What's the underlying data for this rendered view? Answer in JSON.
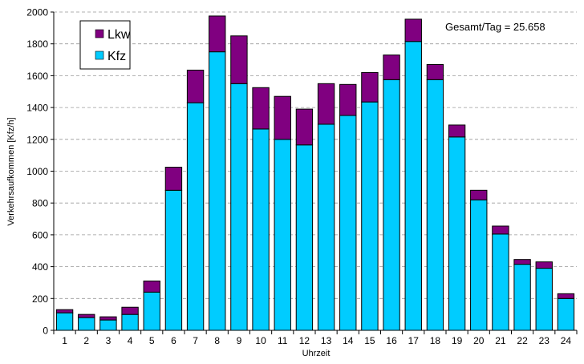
{
  "chart_data": {
    "type": "bar",
    "stacked": true,
    "categories": [
      "1",
      "2",
      "3",
      "4",
      "5",
      "6",
      "7",
      "8",
      "9",
      "10",
      "11",
      "12",
      "13",
      "14",
      "15",
      "16",
      "17",
      "18",
      "19",
      "20",
      "21",
      "22",
      "23",
      "24"
    ],
    "series": [
      {
        "name": "Kfz",
        "color": "#00CCFF",
        "values": [
          110,
          80,
          65,
          100,
          240,
          880,
          1430,
          1750,
          1550,
          1265,
          1200,
          1165,
          1295,
          1350,
          1435,
          1575,
          1815,
          1575,
          1215,
          820,
          605,
          415,
          390,
          200
        ]
      },
      {
        "name": "Lkw",
        "color": "#800080",
        "values": [
          20,
          20,
          20,
          45,
          70,
          145,
          205,
          225,
          300,
          260,
          270,
          225,
          255,
          195,
          185,
          155,
          140,
          95,
          75,
          60,
          50,
          30,
          40,
          30
        ]
      }
    ],
    "xlabel": "Uhrzeit",
    "ylabel": "Verkehrsaufkommen [Kfz/h]",
    "ylim": [
      0,
      2000
    ],
    "yticks": [
      0,
      200,
      400,
      600,
      800,
      1000,
      1200,
      1400,
      1600,
      1800,
      2000
    ],
    "grid": true,
    "legend_position": "top-left",
    "legend_order": [
      "Lkw",
      "Kfz"
    ],
    "annotation": "Gesamt/Tag = 25.658"
  }
}
